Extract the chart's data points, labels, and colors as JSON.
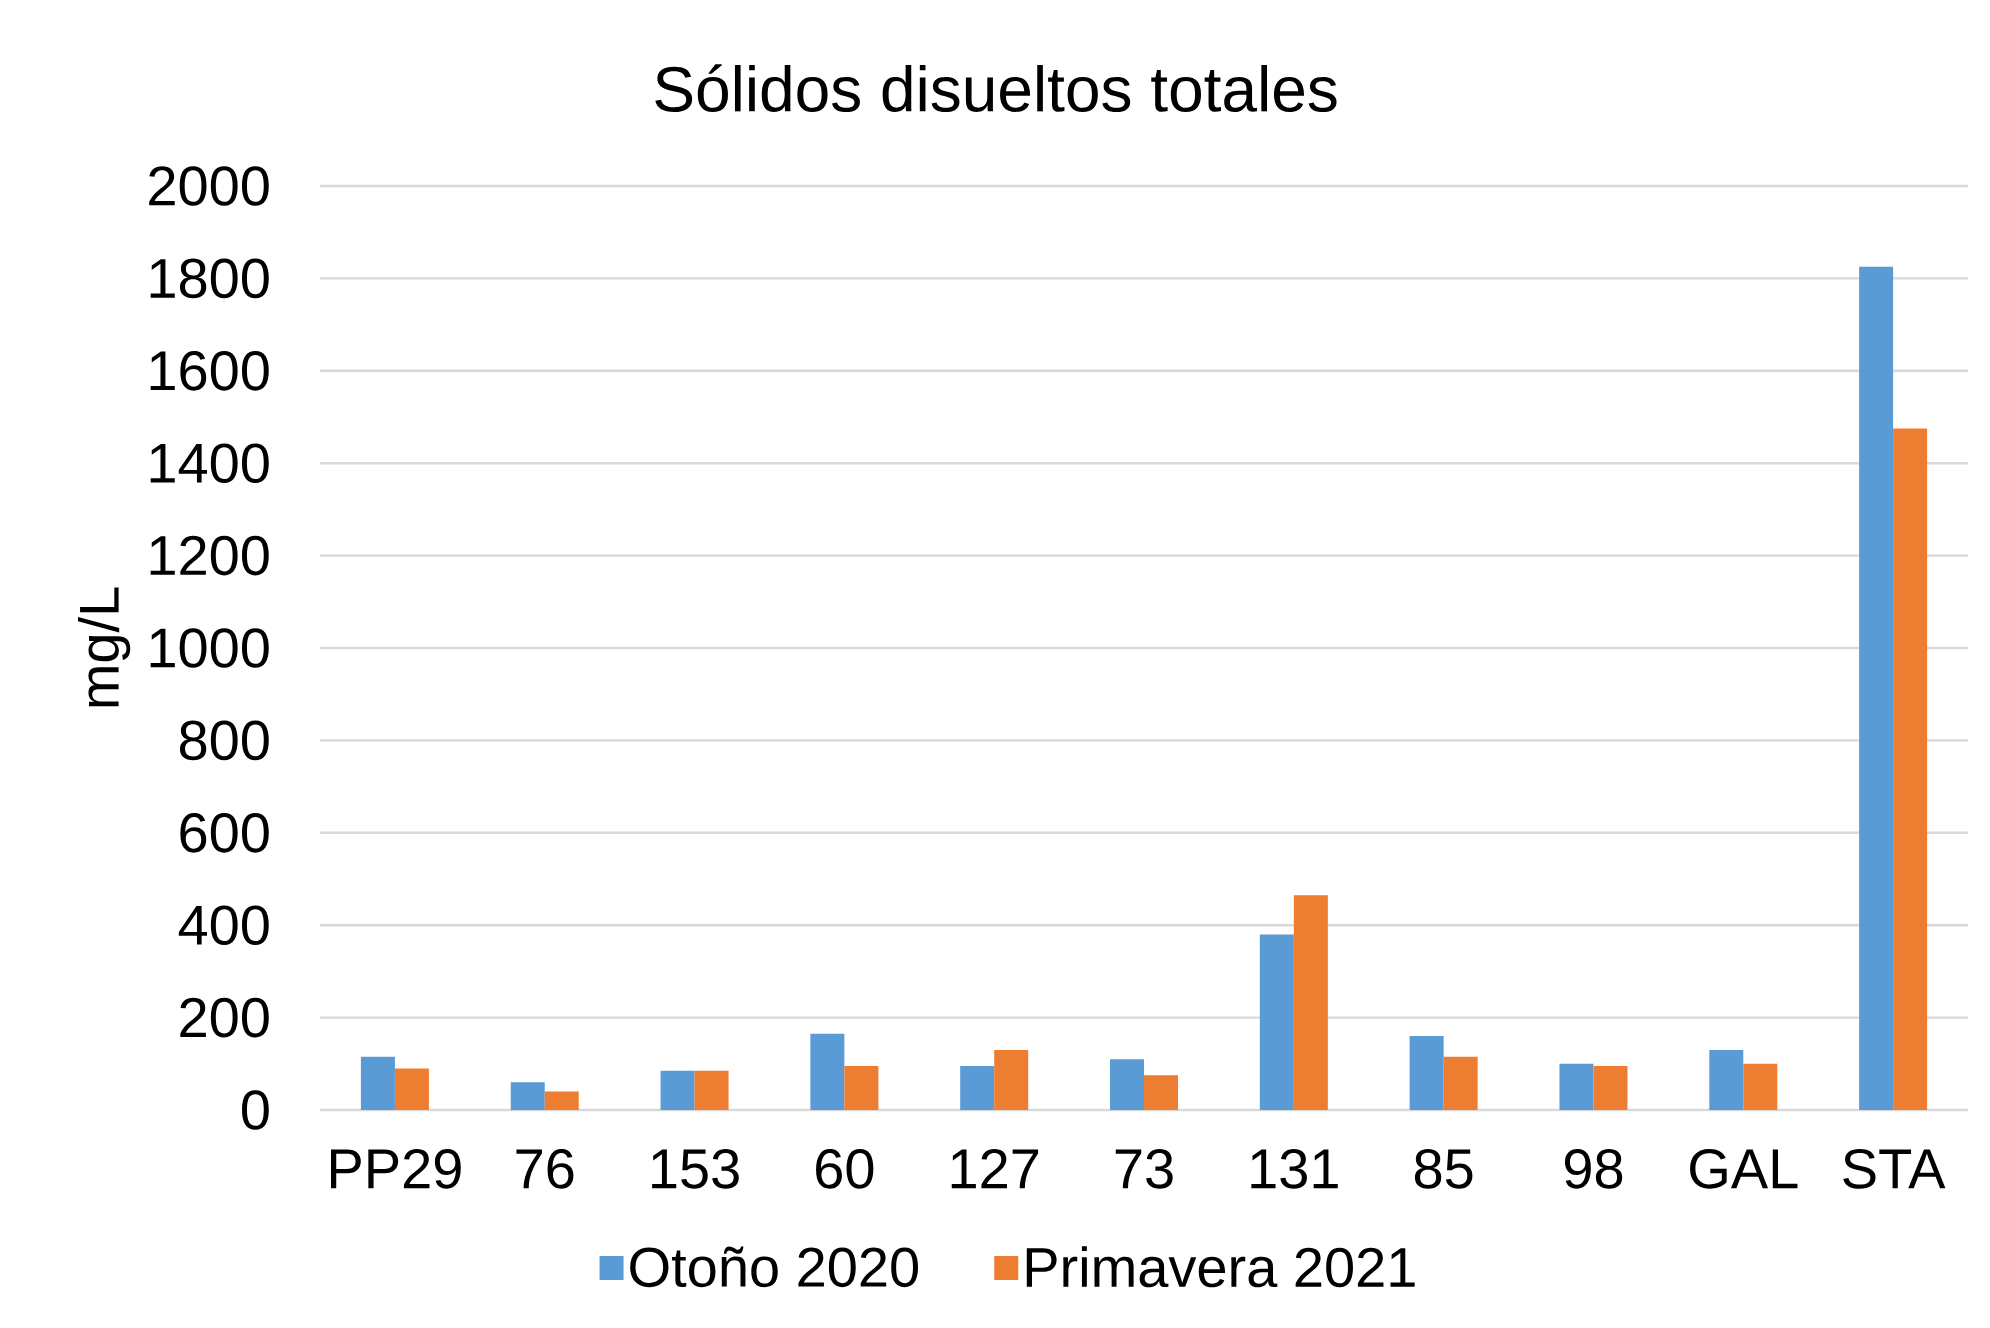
{
  "chart_data": {
    "type": "bar",
    "title": "Sólidos disueltos totales",
    "ylabel": "mg/L",
    "categories": [
      "PP29",
      "76",
      "153",
      "60",
      "127",
      "73",
      "131",
      "85",
      "98",
      "GAL",
      "STA"
    ],
    "series": [
      {
        "name": "Otoño 2020",
        "color": "#5b9bd5",
        "values": [
          115,
          60,
          85,
          165,
          95,
          110,
          380,
          160,
          100,
          130,
          1825
        ]
      },
      {
        "name": "Primavera 2021",
        "color": "#ed7d31",
        "values": [
          90,
          40,
          85,
          95,
          130,
          75,
          465,
          115,
          95,
          100,
          1475
        ]
      }
    ],
    "ylim": [
      0,
      2000
    ],
    "yticks": [
      0,
      200,
      400,
      600,
      800,
      1000,
      1200,
      1400,
      1600,
      1800,
      2000
    ],
    "grid": "y",
    "legend": "bottom"
  }
}
